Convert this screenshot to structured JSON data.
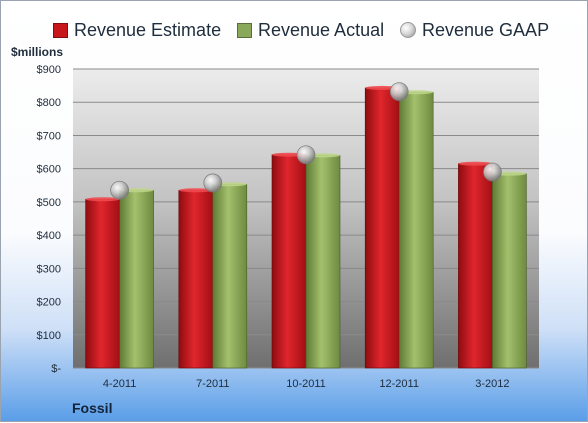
{
  "legend": {
    "estimate": "Revenue Estimate",
    "actual": "Revenue Actual",
    "gaap": "Revenue GAAP"
  },
  "units_label": "$millions",
  "company": "Fossil",
  "colors": {
    "estimate": "#c8161d",
    "actual": "#8aa85a",
    "gaap": "#c9c9c9"
  },
  "chart_data": {
    "type": "bar",
    "categories": [
      "4-2011",
      "7-2011",
      "10-2011",
      "12-2011",
      "3-2012"
    ],
    "series": [
      {
        "name": "Revenue Estimate",
        "values": [
          508,
          535,
          642,
          843,
          615
        ]
      },
      {
        "name": "Revenue Actual",
        "values": [
          535,
          553,
          640,
          830,
          585
        ]
      },
      {
        "name": "Revenue GAAP",
        "values": [
          535,
          557,
          642,
          832,
          590
        ]
      }
    ],
    "yticks": [
      "$900",
      "$800",
      "$700",
      "$600",
      "$500",
      "$400",
      "$300",
      "$200",
      "$100",
      "$-"
    ],
    "ylim": [
      0,
      900
    ],
    "ylabel": "$millions",
    "grid": true,
    "legend_position": "top"
  }
}
